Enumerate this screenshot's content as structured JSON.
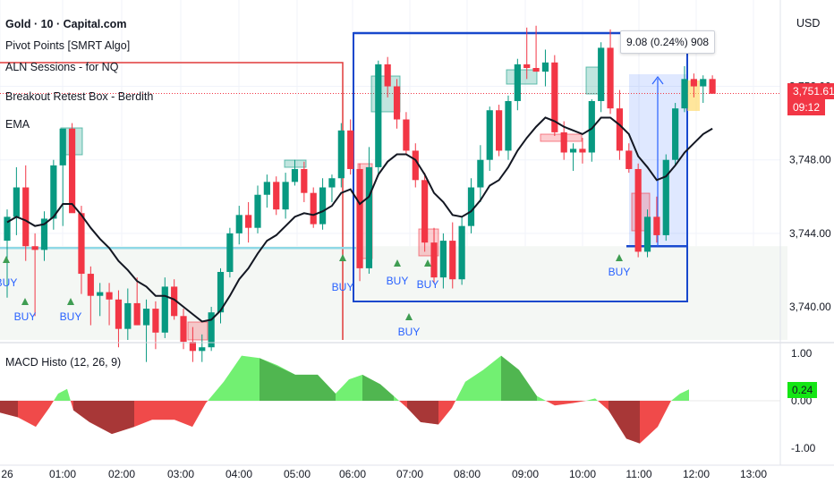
{
  "header": {
    "symbol_title": "Gold · 10 · Capital.com",
    "indicators": [
      "Pivot Points [SMRT Algo]",
      "ALN Sessions - for NQ",
      "Breakout Retest Box - Berdith",
      "EMA"
    ],
    "currency": "USD"
  },
  "price_scale": {
    "ticks": [
      "3,740.00",
      "3,744.00",
      "3,748.00",
      "3,752.00"
    ]
  },
  "current_price": {
    "value": "3,751.61",
    "countdown": "09:12",
    "color": "#f23645"
  },
  "measure_tooltip": "9.08 (0.24%) 908",
  "macd": {
    "title": "MACD Histo (12, 26, 9)",
    "ticks": [
      "1.00",
      "0.00",
      "-1.00"
    ],
    "current_value": "0.24",
    "up_color": "#72f072",
    "down_color": "#f04a4a"
  },
  "time_axis": {
    "labels": [
      "26",
      "01:00",
      "02:00",
      "03:00",
      "04:00",
      "05:00",
      "06:00",
      "07:00",
      "08:00",
      "09:00",
      "10:00",
      "11:00",
      "12:00",
      "13:00"
    ]
  },
  "signals": {
    "buy_label": "BUY"
  },
  "colors": {
    "up": "#089981",
    "down": "#f23645",
    "ema": "#131722",
    "box": "#1848cc",
    "pivot": "#e03a3a",
    "support": "#8fd8e6"
  },
  "chart_data": {
    "type": "candlestick",
    "title": "Gold · 10 · Capital.com",
    "ylim": [
      3738.2,
      3756.7
    ],
    "candles": [
      {
        "o": 3743.6,
        "h": 3745.3,
        "l": 3740.5,
        "c": 3744.9
      },
      {
        "o": 3744.9,
        "h": 3747.6,
        "l": 3743.9,
        "c": 3746.5
      },
      {
        "o": 3746.5,
        "h": 3747.7,
        "l": 3742.5,
        "c": 3743.3
      },
      {
        "o": 3743.3,
        "h": 3744.0,
        "l": 3739.5,
        "c": 3743.1
      },
      {
        "o": 3743.1,
        "h": 3745.2,
        "l": 3742.5,
        "c": 3744.8
      },
      {
        "o": 3744.8,
        "h": 3748.0,
        "l": 3744.2,
        "c": 3747.7
      },
      {
        "o": 3747.7,
        "h": 3749.6,
        "l": 3744.4,
        "c": 3749.7
      },
      {
        "o": 3749.7,
        "h": 3750.0,
        "l": 3745.2,
        "c": 3745.1
      },
      {
        "o": 3745.1,
        "h": 3745.5,
        "l": 3740.7,
        "c": 3741.8
      },
      {
        "o": 3741.8,
        "h": 3742.2,
        "l": 3739.0,
        "c": 3740.6
      },
      {
        "o": 3740.6,
        "h": 3741.3,
        "l": 3739.5,
        "c": 3740.8
      },
      {
        "o": 3740.8,
        "h": 3741.3,
        "l": 3739.0,
        "c": 3740.4
      },
      {
        "o": 3740.4,
        "h": 3740.9,
        "l": 3737.8,
        "c": 3738.8
      },
      {
        "o": 3738.8,
        "h": 3741.0,
        "l": 3738.2,
        "c": 3740.2
      },
      {
        "o": 3740.2,
        "h": 3741.6,
        "l": 3739.0,
        "c": 3739.0
      },
      {
        "o": 3739.0,
        "h": 3740.4,
        "l": 3737.0,
        "c": 3739.9
      },
      {
        "o": 3739.9,
        "h": 3740.3,
        "l": 3737.7,
        "c": 3738.6
      },
      {
        "o": 3738.6,
        "h": 3741.6,
        "l": 3738.3,
        "c": 3741.1
      },
      {
        "o": 3741.1,
        "h": 3741.5,
        "l": 3739.3,
        "c": 3739.5
      },
      {
        "o": 3739.5,
        "h": 3739.9,
        "l": 3737.7,
        "c": 3738.1
      },
      {
        "o": 3738.1,
        "h": 3738.9,
        "l": 3737.0,
        "c": 3737.6
      },
      {
        "o": 3737.6,
        "h": 3738.5,
        "l": 3737.0,
        "c": 3737.8
      },
      {
        "o": 3737.8,
        "h": 3740.0,
        "l": 3737.6,
        "c": 3739.7
      },
      {
        "o": 3739.7,
        "h": 3742.1,
        "l": 3739.1,
        "c": 3741.9
      },
      {
        "o": 3741.9,
        "h": 3744.3,
        "l": 3741.6,
        "c": 3744.0
      },
      {
        "o": 3744.0,
        "h": 3745.5,
        "l": 3743.4,
        "c": 3745.0
      },
      {
        "o": 3745.0,
        "h": 3745.7,
        "l": 3743.5,
        "c": 3744.3
      },
      {
        "o": 3744.3,
        "h": 3746.6,
        "l": 3744.0,
        "c": 3746.1
      },
      {
        "o": 3746.1,
        "h": 3747.2,
        "l": 3745.4,
        "c": 3746.8
      },
      {
        "o": 3746.8,
        "h": 3747.1,
        "l": 3745.0,
        "c": 3745.3
      },
      {
        "o": 3745.3,
        "h": 3747.3,
        "l": 3744.8,
        "c": 3746.8
      },
      {
        "o": 3746.8,
        "h": 3748.0,
        "l": 3746.6,
        "c": 3747.5
      },
      {
        "o": 3747.5,
        "h": 3747.9,
        "l": 3745.7,
        "c": 3746.2
      },
      {
        "o": 3746.2,
        "h": 3746.5,
        "l": 3744.3,
        "c": 3744.5
      },
      {
        "o": 3744.5,
        "h": 3747.0,
        "l": 3744.2,
        "c": 3746.5
      },
      {
        "o": 3746.5,
        "h": 3747.2,
        "l": 3745.7,
        "c": 3747.0
      },
      {
        "o": 3747.0,
        "h": 3750.0,
        "l": 3746.5,
        "c": 3749.6
      },
      {
        "o": 3749.6,
        "h": 3750.2,
        "l": 3747.2,
        "c": 3747.5
      },
      {
        "o": 3747.5,
        "h": 3747.8,
        "l": 3741.4,
        "c": 3742.1
      },
      {
        "o": 3742.1,
        "h": 3748.7,
        "l": 3741.8,
        "c": 3747.6
      },
      {
        "o": 3747.6,
        "h": 3753.4,
        "l": 3747.1,
        "c": 3753.2
      },
      {
        "o": 3753.2,
        "h": 3753.6,
        "l": 3751.4,
        "c": 3752.0
      },
      {
        "o": 3752.0,
        "h": 3752.4,
        "l": 3749.7,
        "c": 3750.2
      },
      {
        "o": 3750.2,
        "h": 3750.6,
        "l": 3748.3,
        "c": 3748.5
      },
      {
        "o": 3748.5,
        "h": 3748.9,
        "l": 3746.5,
        "c": 3746.9
      },
      {
        "o": 3746.9,
        "h": 3747.3,
        "l": 3743.0,
        "c": 3743.5
      },
      {
        "o": 3743.5,
        "h": 3744.3,
        "l": 3741.3,
        "c": 3741.6
      },
      {
        "o": 3741.6,
        "h": 3744.0,
        "l": 3741.0,
        "c": 3743.6
      },
      {
        "o": 3743.6,
        "h": 3744.6,
        "l": 3741.0,
        "c": 3741.5
      },
      {
        "o": 3741.5,
        "h": 3744.9,
        "l": 3741.2,
        "c": 3744.4
      },
      {
        "o": 3744.4,
        "h": 3747.0,
        "l": 3744.0,
        "c": 3746.5
      },
      {
        "o": 3746.5,
        "h": 3748.8,
        "l": 3745.7,
        "c": 3748.0
      },
      {
        "o": 3748.0,
        "h": 3750.9,
        "l": 3747.4,
        "c": 3750.7
      },
      {
        "o": 3750.7,
        "h": 3751.0,
        "l": 3748.2,
        "c": 3748.5
      },
      {
        "o": 3748.5,
        "h": 3751.5,
        "l": 3748.0,
        "c": 3751.2
      },
      {
        "o": 3751.2,
        "h": 3753.5,
        "l": 3750.7,
        "c": 3753.2
      },
      {
        "o": 3753.2,
        "h": 3755.2,
        "l": 3752.4,
        "c": 3753.0
      },
      {
        "o": 3753.0,
        "h": 3755.3,
        "l": 3752.8,
        "c": 3752.8
      },
      {
        "o": 3752.8,
        "h": 3754.0,
        "l": 3752.0,
        "c": 3753.3
      },
      {
        "o": 3753.3,
        "h": 3753.7,
        "l": 3749.3,
        "c": 3749.5
      },
      {
        "o": 3749.5,
        "h": 3750.1,
        "l": 3748.0,
        "c": 3748.4
      },
      {
        "o": 3748.4,
        "h": 3748.9,
        "l": 3747.4,
        "c": 3748.6
      },
      {
        "o": 3748.6,
        "h": 3749.2,
        "l": 3747.8,
        "c": 3748.4
      },
      {
        "o": 3748.4,
        "h": 3751.3,
        "l": 3747.9,
        "c": 3751.2
      },
      {
        "o": 3751.2,
        "h": 3754.4,
        "l": 3750.6,
        "c": 3754.1
      },
      {
        "o": 3754.1,
        "h": 3755.1,
        "l": 3750.5,
        "c": 3750.8
      },
      {
        "o": 3750.8,
        "h": 3751.8,
        "l": 3748.0,
        "c": 3748.5
      },
      {
        "o": 3748.5,
        "h": 3748.9,
        "l": 3747.3,
        "c": 3747.5
      },
      {
        "o": 3747.5,
        "h": 3747.8,
        "l": 3742.7,
        "c": 3743.0
      },
      {
        "o": 3743.0,
        "h": 3745.3,
        "l": 3742.7,
        "c": 3744.9
      },
      {
        "o": 3744.9,
        "h": 3746.0,
        "l": 3743.5,
        "c": 3743.9
      },
      {
        "o": 3743.9,
        "h": 3748.3,
        "l": 3743.6,
        "c": 3748.0
      },
      {
        "o": 3748.0,
        "h": 3751.1,
        "l": 3747.7,
        "c": 3750.8
      },
      {
        "o": 3750.8,
        "h": 3753.1,
        "l": 3750.6,
        "c": 3752.4
      },
      {
        "o": 3752.4,
        "h": 3752.7,
        "l": 3751.4,
        "c": 3752.0
      },
      {
        "o": 3752.0,
        "h": 3752.6,
        "l": 3751.1,
        "c": 3752.4
      },
      {
        "o": 3752.4,
        "h": 3752.6,
        "l": 3751.6,
        "c": 3751.6
      }
    ],
    "ema": [
      3744.6,
      3744.9,
      3744.7,
      3744.4,
      3744.5,
      3744.9,
      3745.6,
      3745.6,
      3745.0,
      3744.3,
      3743.7,
      3743.2,
      3742.5,
      3742.0,
      3741.4,
      3741.1,
      3740.6,
      3740.6,
      3740.4,
      3740.0,
      3739.6,
      3739.2,
      3739.3,
      3739.8,
      3740.6,
      3741.5,
      3742.1,
      3742.9,
      3743.6,
      3743.9,
      3744.4,
      3744.9,
      3745.1,
      3745.0,
      3745.2,
      3745.5,
      3746.2,
      3746.4,
      3745.6,
      3746.0,
      3747.2,
      3747.9,
      3748.3,
      3748.3,
      3748.0,
      3747.2,
      3746.2,
      3745.7,
      3745.0,
      3744.9,
      3745.2,
      3745.8,
      3746.6,
      3746.9,
      3747.6,
      3748.5,
      3749.2,
      3749.8,
      3750.3,
      3750.1,
      3749.8,
      3749.6,
      3749.4,
      3749.7,
      3750.3,
      3750.3,
      3749.9,
      3749.4,
      3748.2,
      3747.6,
      3746.9,
      3747.1,
      3747.7,
      3748.4,
      3748.9,
      3749.4,
      3749.7
    ]
  }
}
